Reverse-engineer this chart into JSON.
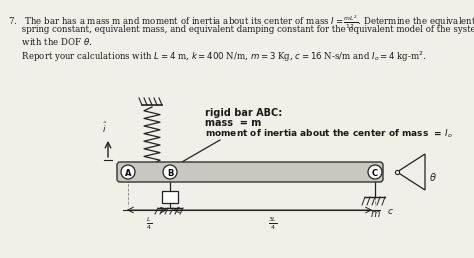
{
  "bg_color": "#f0efe8",
  "text_color": "#1a1a1a",
  "bar_color": "#c8c8c0",
  "bar_outline": "#333333",
  "line_color": "#222222",
  "line1": "7.   The bar has a mass m and moment of inertia about its center of mass $I = \\frac{mL^2}{12}$. Determine the equivalent",
  "line2": "     spring constant, equivalent mass, and equivalent damping constant for the equivalent model of the system",
  "line3": "     with the DOF $\\theta$.",
  "line4": "     Report your calculations with $L = 4$ m, $k = 400$ N/m, $m = 3$ Kg, $c = 16$ N-s/m and $I_o = 4$ kg-m$^2$.",
  "legend1": "rigid bar ABC:",
  "legend2": "mass  = m",
  "legend3": "moment of inertia about the center of mass  = $I_o$",
  "fig_width": 4.74,
  "fig_height": 2.58,
  "dpi": 100
}
